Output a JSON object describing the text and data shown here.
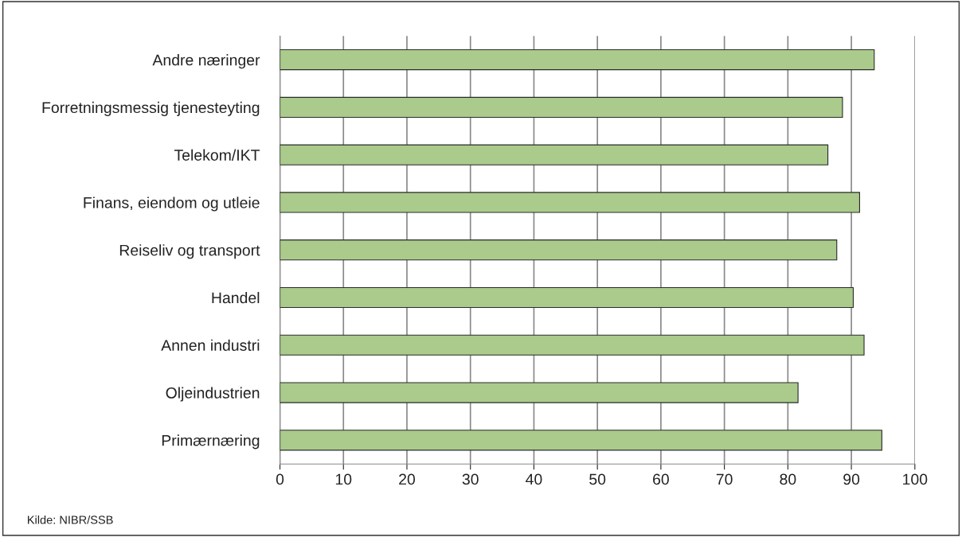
{
  "chart_data": {
    "type": "bar",
    "orientation": "horizontal",
    "categories": [
      "Andre næringer",
      "Forretningsmessig tjenesteyting",
      "Telekom/IKT",
      "Finans, eiendom og utleie",
      "Reiseliv og transport",
      "Handel",
      "Annen industri",
      "Oljeindustrien",
      "Primærnæring"
    ],
    "values": [
      93.6,
      88.6,
      86.3,
      91.3,
      87.7,
      90.3,
      92.0,
      81.6,
      94.8
    ],
    "color": "#aacb8b",
    "xlim": [
      0,
      100
    ],
    "xticks": [
      0,
      10,
      20,
      30,
      40,
      50,
      60,
      70,
      80,
      90,
      100
    ],
    "grid": "x",
    "annotations": [
      "Kilde: NIBR/SSB"
    ]
  }
}
